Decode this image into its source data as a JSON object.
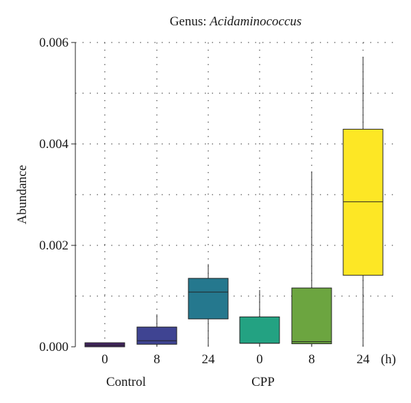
{
  "chart_data": {
    "type": "box",
    "title_prefix": "Genus: ",
    "title_genus": "Acidaminococcus",
    "ylabel": "Abundance",
    "xlabel_unit": "(h)",
    "ylim": [
      0,
      0.006
    ],
    "yticks": [
      "0.000",
      "0.002",
      "0.004",
      "0.006"
    ],
    "ytick_values": [
      0,
      0.002,
      0.004,
      0.006
    ],
    "ygrid_values": [
      0.001,
      0.002,
      0.003,
      0.004,
      0.005,
      0.006
    ],
    "grid": true,
    "groups": [
      {
        "label": "Control",
        "categories": [
          "0",
          "8",
          "24"
        ]
      },
      {
        "label": "CPP",
        "categories": [
          "0",
          "8",
          "24"
        ]
      }
    ],
    "boxes": [
      {
        "group": "Control",
        "time": "0",
        "whisker_low": 0.0,
        "q1": 0.0,
        "median": 3e-05,
        "q3": 8e-05,
        "whisker_high": 8e-05,
        "color": "#452565"
      },
      {
        "group": "Control",
        "time": "8",
        "whisker_low": 0.0,
        "q1": 5e-05,
        "median": 0.00012,
        "q3": 0.00039,
        "whisker_high": 0.00064,
        "color": "#3f4492"
      },
      {
        "group": "Control",
        "time": "24",
        "whisker_low": 0.0,
        "q1": 0.00055,
        "median": 0.00108,
        "q3": 0.00135,
        "whisker_high": 0.00163,
        "color": "#25788e"
      },
      {
        "group": "CPP",
        "time": "0",
        "whisker_low": 0.0,
        "q1": 7e-05,
        "median": 7e-05,
        "q3": 0.00059,
        "whisker_high": 0.00112,
        "color": "#23a282"
      },
      {
        "group": "CPP",
        "time": "8",
        "whisker_low": 0.0,
        "q1": 6e-05,
        "median": 0.0001,
        "q3": 0.00116,
        "whisker_high": 0.00346,
        "color": "#6ca540"
      },
      {
        "group": "CPP",
        "time": "24",
        "whisker_low": 0.0,
        "q1": 0.00141,
        "median": 0.00286,
        "q3": 0.00429,
        "whisker_high": 0.00572,
        "color": "#fde725"
      }
    ]
  }
}
